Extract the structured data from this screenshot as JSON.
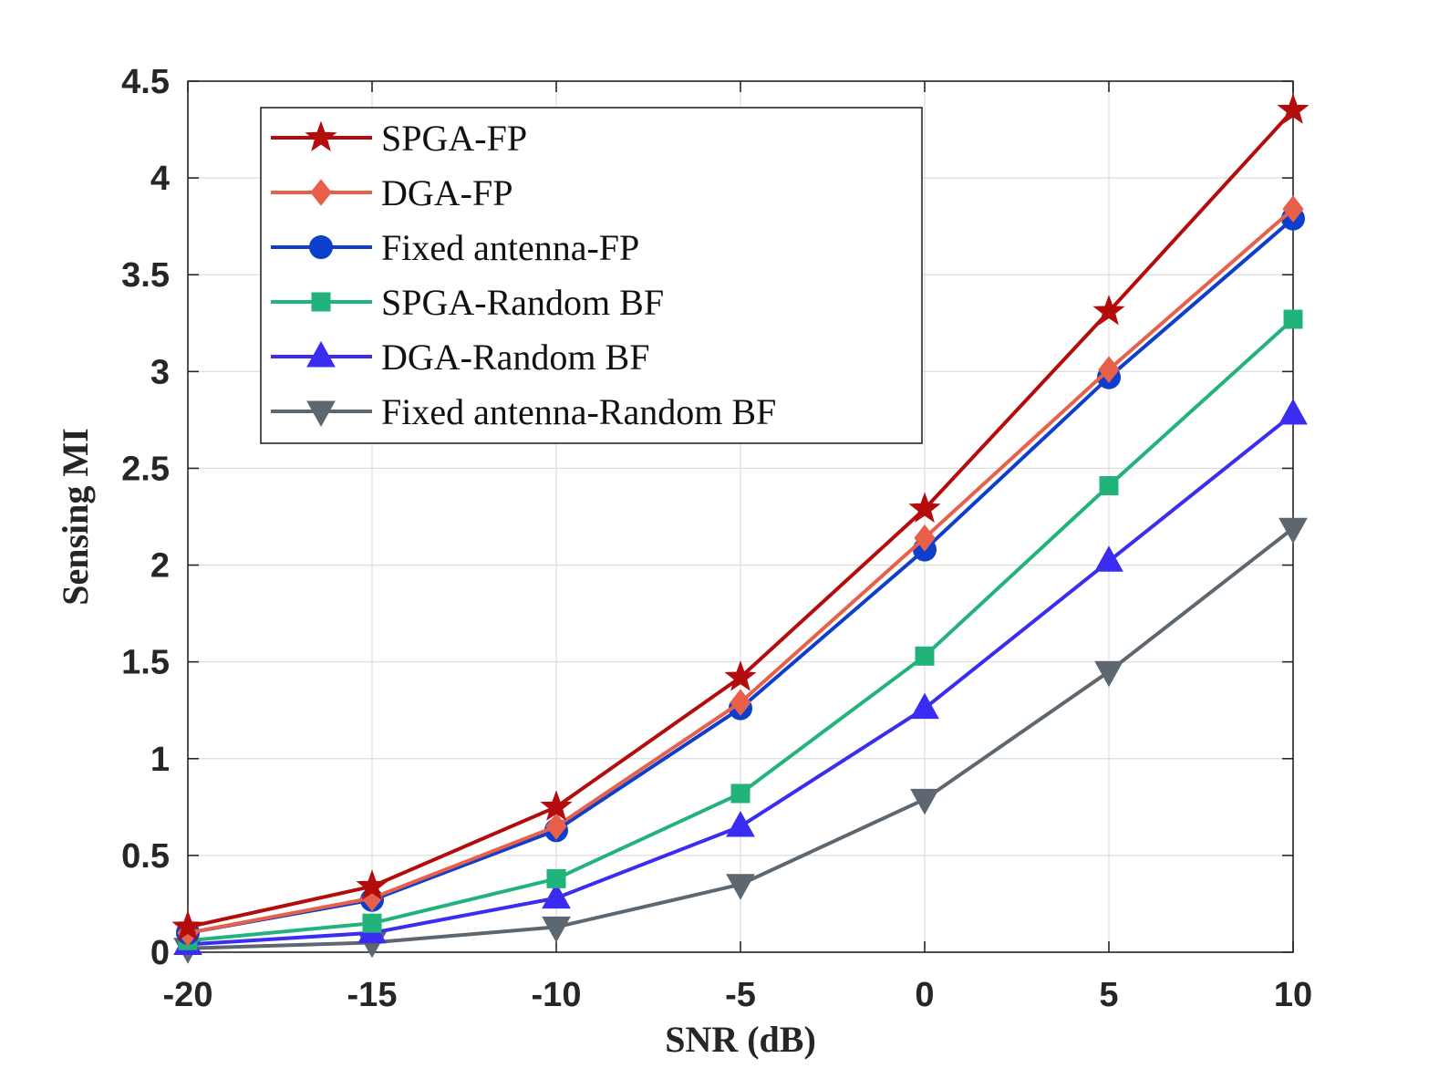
{
  "chart_data": {
    "type": "line",
    "title": "",
    "xlabel": "SNR (dB)",
    "ylabel": "Sensing MI",
    "xlim": [
      -20,
      10
    ],
    "ylim": [
      0,
      4.5
    ],
    "x": [
      -20,
      -15,
      -10,
      -5,
      0,
      5,
      10
    ],
    "x_tick_labels": [
      "-20",
      "-15",
      "-10",
      "-5",
      "0",
      "5",
      "10"
    ],
    "y_ticks": [
      0,
      0.5,
      1,
      1.5,
      2,
      2.5,
      3,
      3.5,
      4,
      4.5
    ],
    "y_tick_labels": [
      "0",
      "0.5",
      "1",
      "1.5",
      "2",
      "2.5",
      "3",
      "3.5",
      "4",
      "4.5"
    ],
    "grid": true,
    "legend_position": "top-left",
    "series": [
      {
        "name": "SPGA-FP",
        "color": "#B40C0C",
        "marker": "star",
        "values": [
          0.13,
          0.34,
          0.75,
          1.42,
          2.29,
          3.31,
          4.35
        ]
      },
      {
        "name": "DGA-FP",
        "color": "#E8604A",
        "marker": "diamond",
        "values": [
          0.1,
          0.28,
          0.65,
          1.29,
          2.14,
          3.01,
          3.84
        ]
      },
      {
        "name": "Fixed antenna-FP",
        "color": "#0E3FCC",
        "marker": "circle",
        "values": [
          0.1,
          0.27,
          0.63,
          1.26,
          2.08,
          2.97,
          3.79
        ]
      },
      {
        "name": "SPGA-Random BF",
        "color": "#22B37A",
        "marker": "square",
        "values": [
          0.06,
          0.15,
          0.38,
          0.82,
          1.53,
          2.41,
          3.27
        ]
      },
      {
        "name": "DGA-Random BF",
        "color": "#3A2CF0",
        "marker": "triangle-up",
        "values": [
          0.04,
          0.1,
          0.28,
          0.65,
          1.26,
          2.02,
          2.78
        ]
      },
      {
        "name": "Fixed antenna-Random BF",
        "color": "#5C6770",
        "marker": "triangle-down",
        "values": [
          0.02,
          0.05,
          0.13,
          0.35,
          0.79,
          1.45,
          2.19
        ]
      }
    ]
  }
}
